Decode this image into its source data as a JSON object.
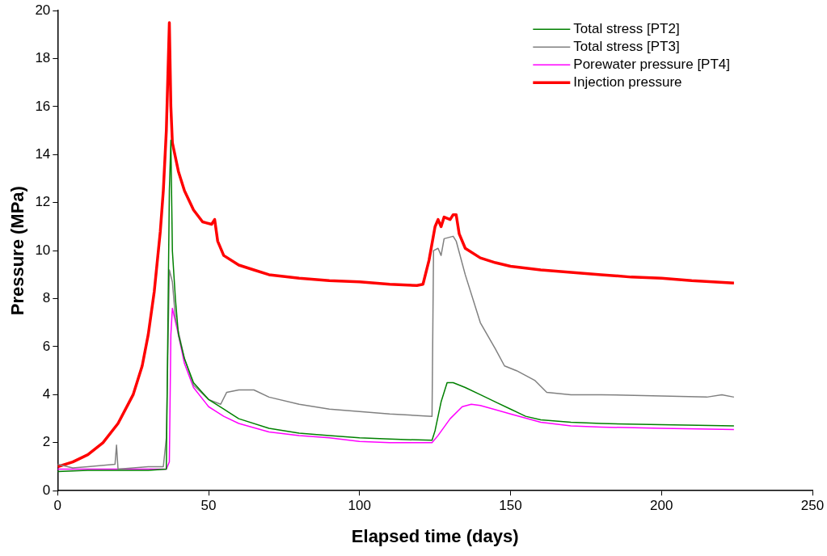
{
  "chart_data": {
    "type": "line",
    "xlabel": "Elapsed time (days)",
    "ylabel": "Pressure (MPa)",
    "xlim": [
      0,
      250
    ],
    "xticks": [
      0,
      50,
      100,
      150,
      200,
      250
    ],
    "ylim": [
      0,
      20
    ],
    "yticks": [
      0,
      2,
      4,
      6,
      8,
      10,
      12,
      14,
      16,
      18,
      20
    ],
    "grid": false,
    "legend": "top right",
    "marker": "none",
    "line_style": "solid",
    "series": [
      {
        "name": "Total stress [PT2]",
        "color": "#008000",
        "x": [
          0,
          10,
          20,
          30,
          36,
          37,
          37.5,
          38,
          39,
          40,
          42,
          45,
          50,
          55,
          60,
          70,
          80,
          90,
          100,
          110,
          124,
          125,
          127,
          129,
          131,
          135,
          140,
          145,
          150,
          155,
          160,
          170,
          180,
          200,
          224
        ],
        "values": [
          0.8,
          0.85,
          0.85,
          0.85,
          0.9,
          12.5,
          14.6,
          10,
          8,
          6.5,
          5.5,
          4.5,
          3.8,
          3.4,
          3.0,
          2.6,
          2.4,
          2.3,
          2.2,
          2.15,
          2.1,
          2.5,
          3.7,
          4.5,
          4.5,
          4.3,
          4.0,
          3.7,
          3.4,
          3.1,
          2.95,
          2.85,
          2.8,
          2.75,
          2.7
        ]
      },
      {
        "name": "Total stress [PT3]",
        "color": "#808080",
        "x": [
          0,
          5,
          10,
          19,
          19.5,
          20,
          30,
          35,
          36,
          37,
          38,
          39,
          42,
          45,
          50,
          54,
          56,
          60,
          65,
          70,
          80,
          90,
          100,
          110,
          124,
          124.5,
          126,
          127,
          128,
          131,
          132,
          135,
          140,
          145,
          148,
          152,
          158,
          162,
          170,
          180,
          200,
          215,
          220,
          224
        ],
        "values": [
          1.1,
          0.95,
          1.0,
          1.1,
          1.9,
          0.9,
          1.0,
          1.0,
          2.2,
          9.2,
          8.7,
          7.2,
          5.5,
          4.4,
          3.8,
          3.6,
          4.1,
          4.2,
          4.2,
          3.9,
          3.6,
          3.4,
          3.3,
          3.2,
          3.1,
          10.0,
          10.1,
          9.8,
          10.5,
          10.6,
          10.4,
          9.0,
          7.0,
          5.9,
          5.2,
          5.0,
          4.6,
          4.1,
          4.0,
          4.0,
          3.95,
          3.9,
          4.0,
          3.9
        ]
      },
      {
        "name": "Porewater pressure [PT4]",
        "color": "#ff00ff",
        "x": [
          0,
          36,
          37,
          37.5,
          38,
          40,
          42,
          45,
          50,
          55,
          60,
          70,
          80,
          90,
          100,
          110,
          124,
          126,
          130,
          134,
          137,
          140,
          150,
          160,
          170,
          180,
          200,
          224
        ],
        "values": [
          0.9,
          0.9,
          1.2,
          6.5,
          7.6,
          6.5,
          5.3,
          4.3,
          3.5,
          3.1,
          2.8,
          2.45,
          2.3,
          2.2,
          2.05,
          2.0,
          2.0,
          2.3,
          3.0,
          3.5,
          3.6,
          3.55,
          3.2,
          2.85,
          2.7,
          2.65,
          2.6,
          2.55
        ]
      },
      {
        "name": "Injection pressure",
        "color": "#ff0000",
        "x": [
          0,
          5,
          10,
          15,
          20,
          25,
          28,
          30,
          32,
          34,
          35,
          36,
          37,
          37.5,
          38,
          40,
          42,
          45,
          48,
          51,
          52,
          53,
          55,
          60,
          65,
          70,
          80,
          90,
          100,
          110,
          119,
          121,
          123,
          125,
          126,
          127,
          128,
          130,
          131,
          132,
          133,
          135,
          140,
          145,
          150,
          160,
          170,
          180,
          190,
          200,
          210,
          224
        ],
        "values": [
          1.0,
          1.2,
          1.5,
          2.0,
          2.8,
          4.0,
          5.2,
          6.5,
          8.3,
          10.8,
          12.5,
          15,
          19.5,
          16,
          14.5,
          13.3,
          12.5,
          11.7,
          11.2,
          11.1,
          11.3,
          10.4,
          9.8,
          9.4,
          9.2,
          9.0,
          8.85,
          8.75,
          8.7,
          8.6,
          8.55,
          8.6,
          9.6,
          11.0,
          11.3,
          11.0,
          11.4,
          11.3,
          11.5,
          11.5,
          10.7,
          10.1,
          9.7,
          9.5,
          9.35,
          9.2,
          9.1,
          9.0,
          8.9,
          8.85,
          8.75,
          8.65
        ]
      }
    ]
  }
}
